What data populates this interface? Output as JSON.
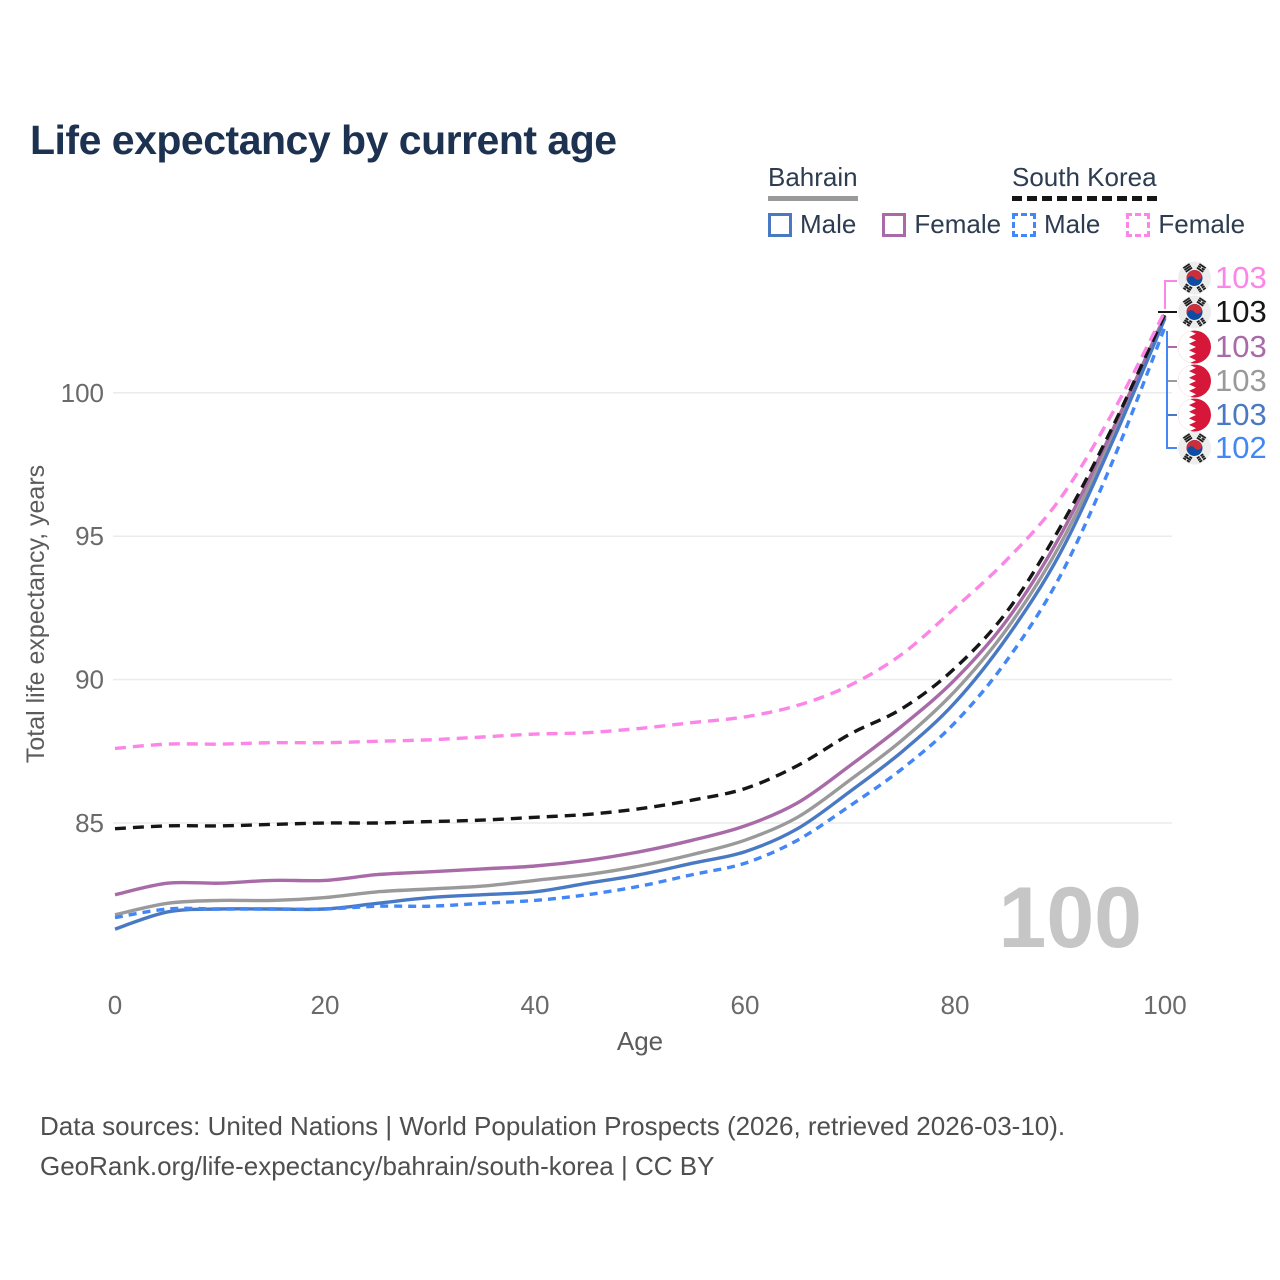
{
  "title": "Life expectancy by current age",
  "legend": {
    "groups": [
      {
        "name": "Bahrain",
        "line_style": "solid",
        "underline_color": "#9a9a9a",
        "items": [
          {
            "label": "Male",
            "color": "#4a79c4",
            "dash": false
          },
          {
            "label": "Female",
            "color": "#a86ba8",
            "dash": false
          }
        ]
      },
      {
        "name": "South Korea",
        "line_style": "dashed",
        "underline_color": "#161616",
        "items": [
          {
            "label": "Male",
            "color": "#4287f5",
            "dash": true
          },
          {
            "label": "Female",
            "color": "#fc85e8",
            "dash": true
          }
        ]
      }
    ]
  },
  "chart_data": {
    "type": "line",
    "title": "Life expectancy by current age",
    "xlabel": "Age",
    "ylabel": "Total life expectancy, years",
    "xticks": [
      0,
      20,
      40,
      60,
      80,
      100
    ],
    "yticks": [
      85,
      90,
      95,
      100
    ],
    "xlim": [
      0,
      100
    ],
    "ylim": [
      81,
      103.5
    ],
    "grid": "horizontal",
    "watermark": "100",
    "x": [
      0,
      5,
      10,
      15,
      20,
      25,
      30,
      35,
      40,
      45,
      50,
      55,
      60,
      65,
      70,
      75,
      80,
      85,
      90,
      95,
      100
    ],
    "series": [
      {
        "id": "kr-female",
        "name": "South Korea Female",
        "country": "South Korea",
        "sex": "Female",
        "color": "#fc85e8",
        "dash": "11 7",
        "flag": "kr",
        "end_label": "103",
        "values": [
          87.6,
          87.75,
          87.75,
          87.8,
          87.8,
          87.85,
          87.9,
          88.0,
          88.1,
          88.15,
          88.3,
          88.5,
          88.7,
          89.1,
          89.8,
          90.9,
          92.5,
          94.2,
          96.3,
          99.3,
          102.85
        ]
      },
      {
        "id": "kr-all",
        "name": "South Korea",
        "country": "South Korea",
        "sex": "Both",
        "color": "#161616",
        "dash": "11 7",
        "flag": "kr",
        "end_label": "103",
        "values": [
          84.8,
          84.9,
          84.9,
          84.95,
          85.0,
          85.0,
          85.05,
          85.1,
          85.2,
          85.3,
          85.5,
          85.8,
          86.2,
          87.0,
          88.1,
          89.0,
          90.4,
          92.4,
          95.3,
          98.8,
          102.75
        ]
      },
      {
        "id": "bh-female",
        "name": "Bahrain Female",
        "country": "Bahrain",
        "sex": "Female",
        "color": "#a86ba8",
        "dash": null,
        "flag": "bh",
        "end_label": "103",
        "values": [
          82.5,
          82.9,
          82.9,
          83.0,
          83.0,
          83.2,
          83.3,
          83.4,
          83.5,
          83.7,
          84.0,
          84.4,
          84.9,
          85.7,
          87.0,
          88.4,
          90.0,
          92.1,
          95.0,
          98.7,
          102.7
        ]
      },
      {
        "id": "bh-all",
        "name": "Bahrain",
        "country": "Bahrain",
        "sex": "Both",
        "color": "#9a9a9a",
        "dash": null,
        "flag": "bh",
        "end_label": "103",
        "values": [
          81.8,
          82.2,
          82.3,
          82.3,
          82.4,
          82.6,
          82.7,
          82.8,
          83.0,
          83.2,
          83.5,
          83.9,
          84.4,
          85.2,
          86.5,
          87.9,
          89.6,
          91.8,
          94.7,
          98.5,
          102.65
        ]
      },
      {
        "id": "bh-male",
        "name": "Bahrain Male",
        "country": "Bahrain",
        "sex": "Male",
        "color": "#4a79c4",
        "dash": null,
        "flag": "bh",
        "end_label": "103",
        "values": [
          81.3,
          81.9,
          82.0,
          82.0,
          82.0,
          82.2,
          82.4,
          82.5,
          82.6,
          82.9,
          83.2,
          83.6,
          84.0,
          84.8,
          86.1,
          87.5,
          89.2,
          91.5,
          94.4,
          98.3,
          102.6
        ]
      },
      {
        "id": "kr-male",
        "name": "South Korea Male",
        "country": "South Korea",
        "sex": "Male",
        "color": "#4287f5",
        "dash": "8 6",
        "flag": "kr",
        "end_label": "102",
        "values": [
          81.7,
          82.0,
          82.0,
          82.0,
          82.0,
          82.1,
          82.1,
          82.2,
          82.3,
          82.5,
          82.8,
          83.2,
          83.6,
          84.4,
          85.6,
          86.9,
          88.5,
          90.7,
          93.6,
          97.6,
          102.3
        ]
      }
    ]
  },
  "footer": {
    "line1": "Data sources: United Nations | World Population Prospects (2026, retrieved 2026-03-10).",
    "line2": "GeoRank.org/life-expectancy/bahrain/south-korea | CC BY"
  }
}
